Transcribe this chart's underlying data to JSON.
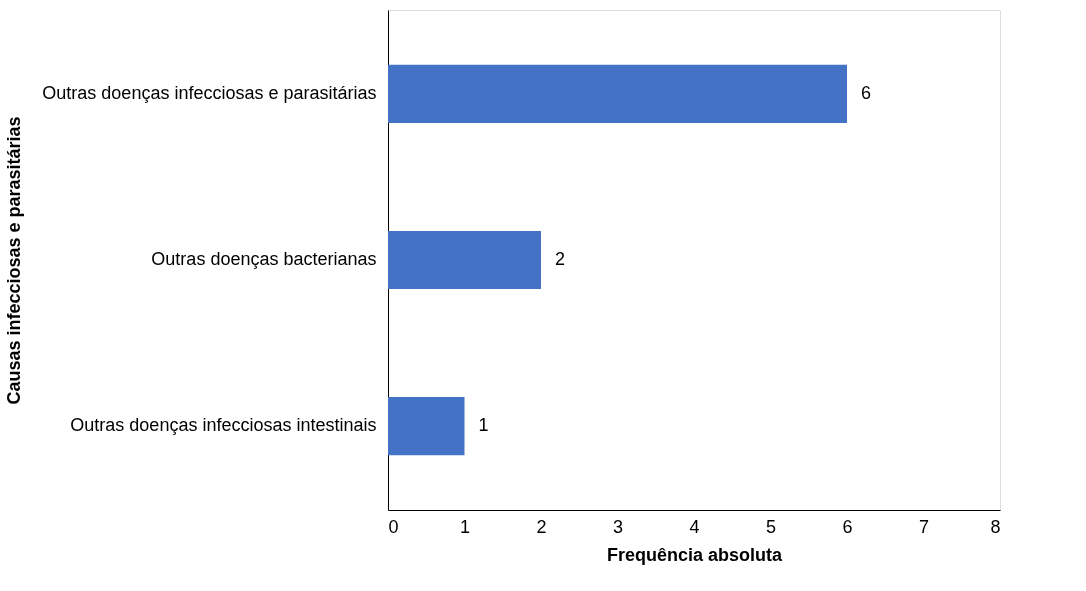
{
  "chart_data": {
    "type": "bar",
    "orientation": "horizontal",
    "xlabel": "Frequência absoluta",
    "ylabel": "Causas infecciosas e parasitárias",
    "categories": [
      "Outras doenças infecciosas e parasitárias",
      "Outras doenças bacterianas",
      "Outras doenças infecciosas intestinais"
    ],
    "values": [
      6,
      2,
      1
    ],
    "color": "#4472c4",
    "xlim": [
      0,
      8
    ],
    "xticks": [
      0,
      1,
      2,
      3,
      4,
      5,
      6,
      7,
      8
    ],
    "grid": false,
    "data_labels": true
  }
}
